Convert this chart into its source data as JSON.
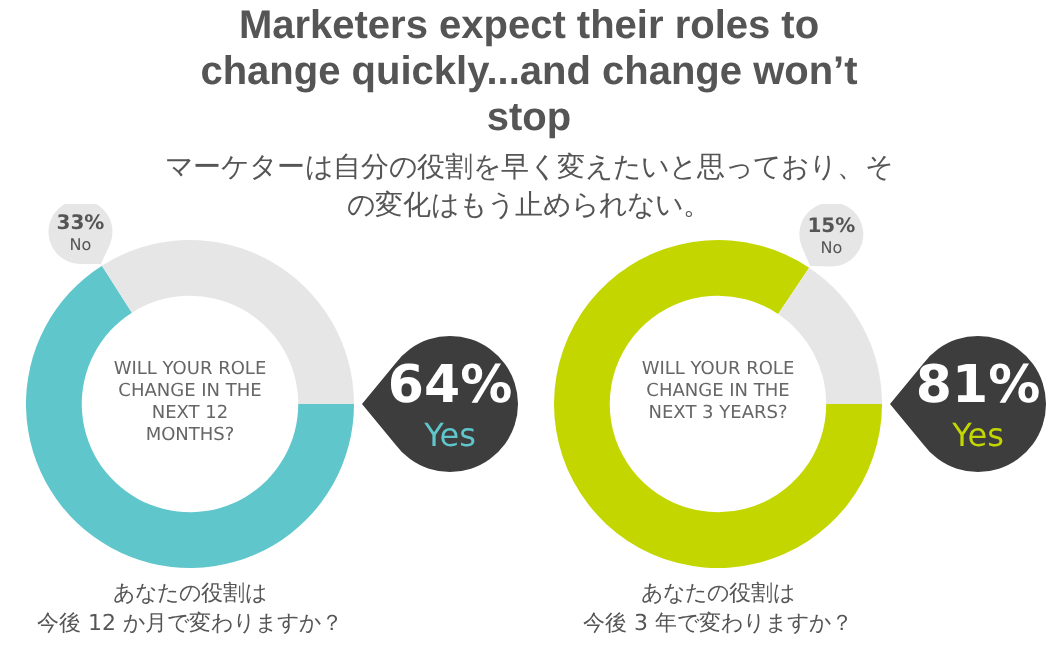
{
  "chart_data": [
    {
      "type": "donut",
      "title": "Marketers expect their roles to change quickly...and change won’t stop",
      "subtitle": "マーケターは自分の役割を早く変えたいと思っており、その変化はもう止められない。",
      "categories": [
        "Yes",
        "No"
      ],
      "values": [
        64,
        33
      ],
      "colors": [
        "#5fc6cb",
        "#e6e6e6"
      ],
      "value_labels": [
        "64%",
        "33%"
      ],
      "annotations": [
        "WILL YOUR ROLE CHANGE IN THE NEXT 12 MONTHS?",
        "あなたの役割は",
        "今後 12 か月で変わりますか？"
      ],
      "legend": false
    },
    {
      "type": "donut",
      "categories": [
        "Yes",
        "No"
      ],
      "values": [
        81,
        15
      ],
      "colors": [
        "#c4d600",
        "#e6e6e6"
      ],
      "value_labels": [
        "81%",
        "15%"
      ],
      "annotations": [
        "WILL YOUR ROLE CHANGE IN THE NEXT 3 YEARS?",
        "あなたの役割は",
        "今後 3 年で変わりますか？"
      ],
      "legend": false
    }
  ]
}
